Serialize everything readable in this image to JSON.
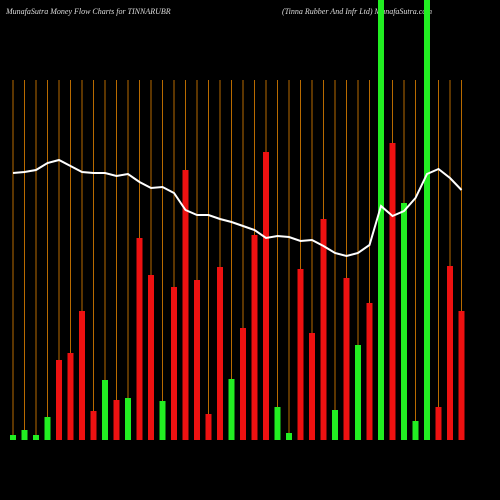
{
  "chart_data": {
    "type": "bar",
    "title": "MunafaSutra  Money Flow  Charts for TINNARUBR",
    "subtitle": "(Tinna  Rubber And Infr Ltd)  MunafaSutra.com",
    "categories": [
      null,
      null,
      null,
      null,
      null,
      null,
      null,
      null,
      null,
      null,
      null,
      null,
      null,
      null,
      null,
      null,
      null,
      null,
      null,
      null,
      null,
      null,
      null,
      null,
      null,
      null,
      null,
      null,
      null,
      null,
      null,
      null,
      null,
      null,
      null,
      null,
      null,
      null,
      null,
      null
    ],
    "values": [
      5,
      10,
      5,
      23,
      80,
      87,
      129,
      29,
      60,
      40,
      42,
      202,
      165,
      39,
      153,
      270,
      160,
      26,
      173,
      61,
      112,
      205,
      288,
      33,
      7,
      171,
      107,
      221,
      30,
      162,
      95,
      137,
      440,
      297,
      237,
      19,
      440,
      33,
      174,
      129
    ],
    "colors": [
      "#22ee22",
      "#22ee22",
      "#22ee22",
      "#22ee22",
      "#ee1111",
      "#ee1111",
      "#ee1111",
      "#ee1111",
      "#22ee22",
      "#ee1111",
      "#22ee22",
      "#ee1111",
      "#ee1111",
      "#22ee22",
      "#ee1111",
      "#ee1111",
      "#ee1111",
      "#ee1111",
      "#ee1111",
      "#22ee22",
      "#ee1111",
      "#ee1111",
      "#ee1111",
      "#22ee22",
      "#22ee22",
      "#ee1111",
      "#ee1111",
      "#ee1111",
      "#22ee22",
      "#ee1111",
      "#22ee22",
      "#ee1111",
      "#22ee22",
      "#ee1111",
      "#22ee22",
      "#22ee22",
      "#22ee22",
      "#ee1111",
      "#ee1111",
      "#ee1111"
    ],
    "line": {
      "color": "#ffffff",
      "values": [
        267,
        268,
        270,
        277,
        280,
        274,
        268,
        267,
        267,
        264,
        266,
        258,
        252,
        253,
        247,
        230,
        225,
        225,
        221,
        218,
        214,
        210,
        202,
        204,
        203,
        199,
        200,
        194,
        187,
        184,
        187,
        195,
        234,
        224,
        229,
        242,
        266,
        271,
        262,
        250
      ]
    },
    "ylim": [
      0,
      440
    ],
    "grid_color": "#b86a00"
  }
}
